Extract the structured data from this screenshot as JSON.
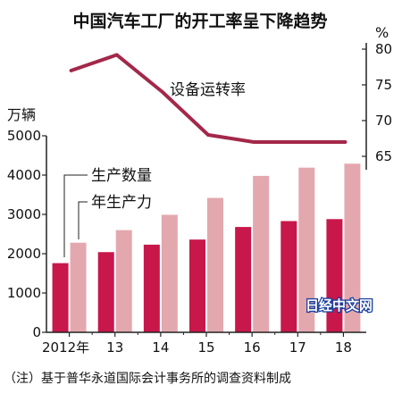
{
  "chart_data": {
    "type": "bar",
    "title": "中国汽车工厂的开工率呈下降趋势",
    "categories": [
      "2012年",
      "13",
      "14",
      "15",
      "16",
      "17",
      "18"
    ],
    "left_axis": {
      "unit": "万辆",
      "range": [
        0,
        5000
      ],
      "ticks": [
        "0",
        "1000",
        "2000",
        "3000",
        "4000",
        "5000"
      ]
    },
    "right_axis": {
      "unit": "%",
      "range": [
        65,
        80
      ],
      "ticks": [
        "65",
        "70",
        "75",
        "80"
      ]
    },
    "series": [
      {
        "name": "生产数量",
        "type": "bar",
        "axis": "left",
        "color": "#c8174a",
        "values": [
          1760,
          2040,
          2230,
          2360,
          2680,
          2830,
          2880
        ]
      },
      {
        "name": "年生产力",
        "type": "bar",
        "axis": "left",
        "color": "#e3a8ae",
        "values": [
          2280,
          2600,
          2990,
          3420,
          3980,
          4190,
          4290
        ]
      },
      {
        "name": "设备运转率",
        "type": "line",
        "axis": "right",
        "color": "#a3284a",
        "values": [
          77.0,
          79.2,
          74.0,
          68.0,
          67.0,
          67.0,
          67.0
        ]
      }
    ],
    "grid": false
  },
  "footnote": "（注）基于普华永道国际会计事务所的调查资料制成",
  "watermark": "日经中文网"
}
